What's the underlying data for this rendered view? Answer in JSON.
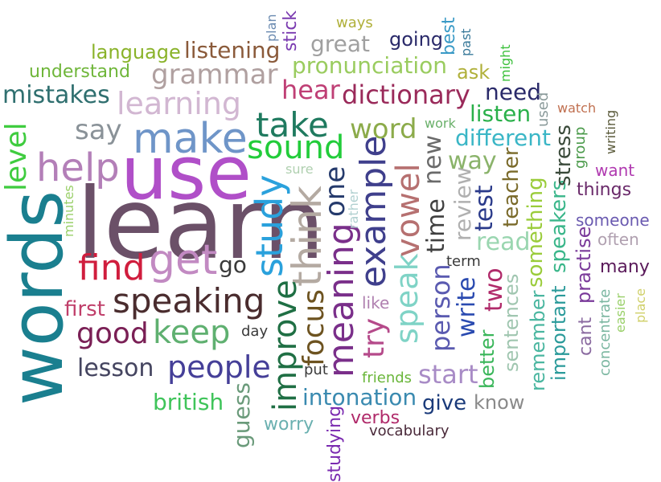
{
  "words": [
    {
      "text": "learn",
      "color": "#6b5068"
    },
    {
      "text": "use",
      "color": "#b04fc8"
    },
    {
      "text": "words",
      "color": "#1a7f8f"
    },
    {
      "text": "make",
      "color": "#6f95c8"
    },
    {
      "text": "help",
      "color": "#b37fb8"
    },
    {
      "text": "get",
      "color": "#c28ac2"
    },
    {
      "text": "find",
      "color": "#d01d3d"
    },
    {
      "text": "speaking",
      "color": "#4a2c2e"
    },
    {
      "text": "keep",
      "color": "#5fb070"
    },
    {
      "text": "good",
      "color": "#7a1f55"
    },
    {
      "text": "people",
      "color": "#453f98"
    },
    {
      "text": "level",
      "color": "#3fcc3f"
    },
    {
      "text": "learning",
      "color": "#d2b7d2"
    },
    {
      "text": "say",
      "color": "#8a9298"
    },
    {
      "text": "take",
      "color": "#1f7a5f"
    },
    {
      "text": "sound",
      "color": "#22cc3a"
    },
    {
      "text": "study",
      "color": "#2aa1dc"
    },
    {
      "text": "think",
      "color": "#b4aaa2"
    },
    {
      "text": "improve",
      "color": "#1f6f44"
    },
    {
      "text": "focus",
      "color": "#6d5320"
    },
    {
      "text": "meaning",
      "color": "#7a2f8a"
    },
    {
      "text": "example",
      "color": "#3f3f8c"
    },
    {
      "text": "one",
      "color": "#253a6c"
    },
    {
      "text": "speak",
      "color": "#7fd3c6"
    },
    {
      "text": "try",
      "color": "#b54a8a"
    },
    {
      "text": "vowel",
      "color": "#b67070"
    },
    {
      "text": "grammar",
      "color": "#b0a0a0"
    },
    {
      "text": "mistakes",
      "color": "#2f6f6f"
    },
    {
      "text": "dictionary",
      "color": "#9a2a5a"
    },
    {
      "text": "hear",
      "color": "#bf3f75"
    },
    {
      "text": "word",
      "color": "#8cab4a"
    },
    {
      "text": "pronunciation",
      "color": "#9acc5f"
    },
    {
      "text": "listening",
      "color": "#8a5a3a"
    },
    {
      "text": "language",
      "color": "#8ab32a"
    },
    {
      "text": "understand",
      "color": "#6fb63a"
    },
    {
      "text": "great",
      "color": "#a0a0a0"
    },
    {
      "text": "going",
      "color": "#2a2a6a"
    },
    {
      "text": "lesson",
      "color": "#454560"
    },
    {
      "text": "british",
      "color": "#3fc45a"
    },
    {
      "text": "first",
      "color": "#c03f6a"
    },
    {
      "text": "start",
      "color": "#a88bc6"
    },
    {
      "text": "intonation",
      "color": "#3a8ab0"
    },
    {
      "text": "person",
      "color": "#5a5ab0"
    },
    {
      "text": "time",
      "color": "#3f3f3f"
    },
    {
      "text": "new",
      "color": "#6a6a6a"
    },
    {
      "text": "review",
      "color": "#b0b0b0"
    },
    {
      "text": "test",
      "color": "#2a3a8a"
    },
    {
      "text": "write",
      "color": "#2a4ab0"
    },
    {
      "text": "two",
      "color": "#b02a6a"
    },
    {
      "text": "way",
      "color": "#8ab36a"
    },
    {
      "text": "different",
      "color": "#3ab6c6"
    },
    {
      "text": "listen",
      "color": "#2ab04a"
    },
    {
      "text": "need",
      "color": "#2a2a6a"
    },
    {
      "text": "read",
      "color": "#9ad6b0"
    },
    {
      "text": "teacher",
      "color": "#7a6a2a"
    },
    {
      "text": "something",
      "color": "#9acc3a"
    },
    {
      "text": "speakers",
      "color": "#3ab68a"
    },
    {
      "text": "stress",
      "color": "#3a4a3a"
    },
    {
      "text": "remember",
      "color": "#4ab6a0"
    },
    {
      "text": "important",
      "color": "#2a9a9a"
    },
    {
      "text": "practise",
      "color": "#7a3a9a"
    },
    {
      "text": "cant",
      "color": "#8a6aa0"
    },
    {
      "text": "concentrate",
      "color": "#7ab6a0"
    },
    {
      "text": "easier",
      "color": "#9ad06a"
    },
    {
      "text": "place",
      "color": "#d0d06a"
    },
    {
      "text": "many",
      "color": "#5a1a5a"
    },
    {
      "text": "often",
      "color": "#b0a0b0"
    },
    {
      "text": "someone",
      "color": "#6a5ab0"
    },
    {
      "text": "things",
      "color": "#6a2a6a"
    },
    {
      "text": "want",
      "color": "#b03ab0"
    },
    {
      "text": "group",
      "color": "#4a9a4a"
    },
    {
      "text": "writing",
      "color": "#5a5a3a"
    },
    {
      "text": "watch",
      "color": "#c07050"
    },
    {
      "text": "used",
      "color": "#8a9a9a"
    },
    {
      "text": "work",
      "color": "#6ab06a"
    },
    {
      "text": "ask",
      "color": "#b0b03a"
    },
    {
      "text": "might",
      "color": "#3ac03a"
    },
    {
      "text": "past",
      "color": "#3a7a9a"
    },
    {
      "text": "best",
      "color": "#3a9ac6"
    },
    {
      "text": "ways",
      "color": "#b0b03a"
    },
    {
      "text": "plan",
      "color": "#6a8ab0"
    },
    {
      "text": "stick",
      "color": "#7a3ab0"
    },
    {
      "text": "sentences",
      "color": "#a0c6b0"
    },
    {
      "text": "better",
      "color": "#3ab65a"
    },
    {
      "text": "give",
      "color": "#1a3a7a"
    },
    {
      "text": "know",
      "color": "#8a8a8a"
    },
    {
      "text": "friends",
      "color": "#6ab63a"
    },
    {
      "text": "like",
      "color": "#b080b0"
    },
    {
      "text": "term",
      "color": "#3a3a3a"
    },
    {
      "text": "put",
      "color": "#3a3a3a"
    },
    {
      "text": "verbs",
      "color": "#b02a6a"
    },
    {
      "text": "vocabulary",
      "color": "#4a2a3a"
    },
    {
      "text": "studying",
      "color": "#7a2ab0"
    },
    {
      "text": "worry",
      "color": "#6ab0b0"
    },
    {
      "text": "guess",
      "color": "#6a9a7a"
    },
    {
      "text": "day",
      "color": "#3a3a3a"
    },
    {
      "text": "go",
      "color": "#3a3a3a"
    },
    {
      "text": "minutes",
      "color": "#9ad06a"
    },
    {
      "text": "sure",
      "color": "#b0d0b0"
    },
    {
      "text": "rather",
      "color": "#b0d0d0"
    }
  ]
}
